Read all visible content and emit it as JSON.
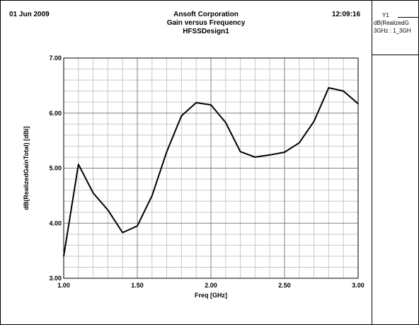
{
  "header": {
    "date": "01 Jun 2009",
    "time": "12:09:16",
    "company": "Ansoft Corporation",
    "title": "Gain versus Frequency",
    "design": "HFSSDesign1"
  },
  "legend": {
    "series_name": "Y1",
    "expression": "dB(RealizedG",
    "setup": "3GHz : 1_3GH"
  },
  "colors": {
    "line": "#000000",
    "grid_minor": "#c8c8c8",
    "grid_major": "#808080"
  },
  "chart_data": {
    "type": "line",
    "title": "Gain versus Frequency",
    "xlabel": "Freq [GHz]",
    "ylabel": "dB(RealizedGainTotal) [dBi]",
    "xlim": [
      1.0,
      3.0
    ],
    "ylim": [
      3.0,
      7.0
    ],
    "xticks": [
      {
        "value": 1.0,
        "label": "1.00"
      },
      {
        "value": 1.5,
        "label": "1.50"
      },
      {
        "value": 2.0,
        "label": "2.00"
      },
      {
        "value": 2.5,
        "label": "2.50"
      },
      {
        "value": 3.0,
        "label": "3.00"
      }
    ],
    "yticks": [
      {
        "value": 3.0,
        "label": "3.00"
      },
      {
        "value": 4.0,
        "label": "4.00"
      },
      {
        "value": 5.0,
        "label": "5.00"
      },
      {
        "value": 6.0,
        "label": "6.00"
      },
      {
        "value": 7.0,
        "label": "7.00"
      }
    ],
    "grid": true,
    "legend_position": "top-right",
    "series": [
      {
        "name": "Y1",
        "x": [
          1.0,
          1.1,
          1.2,
          1.3,
          1.4,
          1.5,
          1.6,
          1.7,
          1.8,
          1.9,
          2.0,
          2.1,
          2.2,
          2.3,
          2.4,
          2.5,
          2.6,
          2.7,
          2.8,
          2.9,
          3.0
        ],
        "y": [
          3.4,
          5.07,
          4.55,
          4.24,
          3.83,
          3.95,
          4.5,
          5.3,
          5.95,
          6.19,
          6.15,
          5.83,
          5.3,
          5.2,
          5.24,
          5.29,
          5.46,
          5.85,
          6.46,
          6.4,
          6.17
        ]
      }
    ]
  }
}
